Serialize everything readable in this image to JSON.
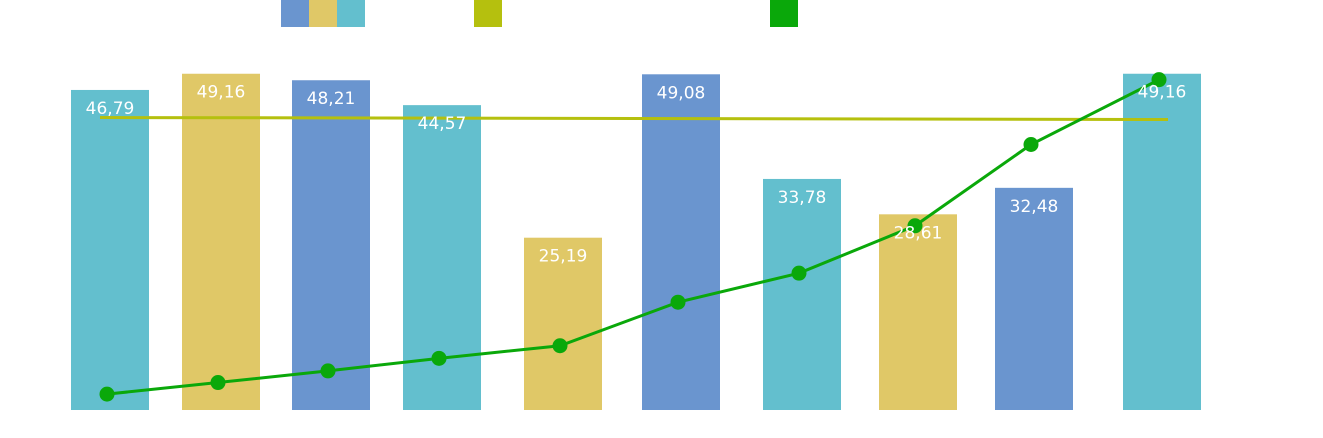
{
  "chart_data": {
    "type": "bar",
    "values": [
      46.79,
      49.16,
      48.21,
      44.57,
      25.19,
      49.08,
      33.78,
      28.61,
      32.48,
      49.16
    ],
    "value_labels": [
      "46,79",
      "49,16",
      "48,21",
      "44,57",
      "25,19",
      "49,08",
      "33,78",
      "28,61",
      "32,48",
      "49,16"
    ],
    "bar_colors": [
      "#63bfce",
      "#e0c867",
      "#6a95cf",
      "#63bfce",
      "#e0c867",
      "#6a95cf",
      "#63bfce",
      "#e0c867",
      "#6a95cf",
      "#63bfce"
    ],
    "reference_line": {
      "value": 42.76,
      "color": "#b5c00e"
    },
    "cumulative_line": {
      "color": "#0aa80a",
      "values": [
        0.4,
        1.6,
        2.8,
        4.1,
        5.4,
        9.9,
        12.9,
        17.8,
        26.2,
        32.9
      ]
    },
    "ylim": [
      0,
      50
    ],
    "y2lim": [
      0,
      37
    ],
    "legend": {
      "placement": "top",
      "items": [
        {
          "swatches": [
            "#6a95cf",
            "#e0c867",
            "#63bfce"
          ]
        },
        {
          "swatches": [
            "#b5c00e"
          ]
        },
        {
          "swatches": [
            "#0aa80a"
          ]
        }
      ]
    },
    "grid": false
  }
}
